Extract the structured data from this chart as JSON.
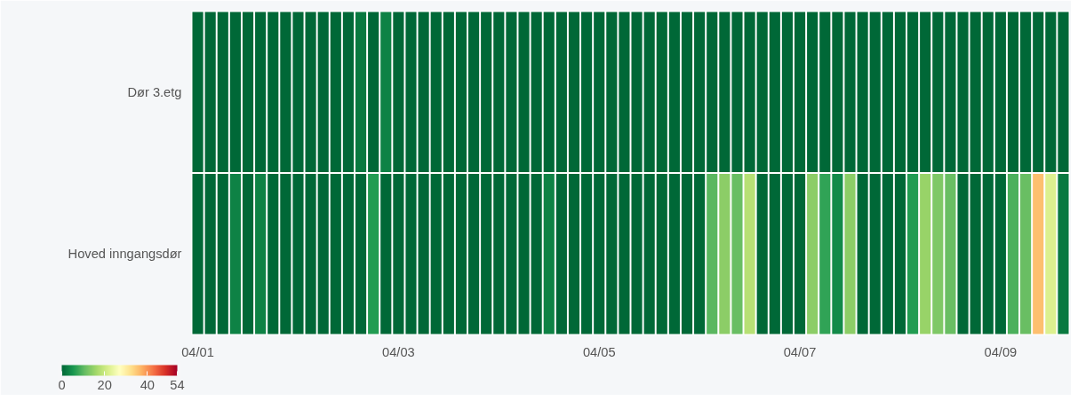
{
  "chart_data": {
    "type": "heatmap",
    "categories": [
      "04/01",
      null,
      null,
      null,
      null,
      null,
      null,
      null,
      null,
      null,
      null,
      null,
      null,
      null,
      null,
      null,
      "04/03",
      null,
      null,
      null,
      null,
      null,
      null,
      null,
      null,
      null,
      null,
      null,
      null,
      null,
      null,
      null,
      "04/05",
      null,
      null,
      null,
      null,
      null,
      null,
      null,
      null,
      null,
      null,
      null,
      null,
      null,
      null,
      null,
      "04/07",
      null,
      null,
      null,
      null,
      null,
      null,
      null,
      null,
      null,
      null,
      null,
      null,
      null,
      null,
      null,
      "04/09",
      null,
      null,
      null,
      null,
      null
    ],
    "y_categories": [
      "Dør 3.etg",
      "Hoved inngangsdør"
    ],
    "cells": [
      [
        0,
        0,
        0,
        0,
        0,
        0,
        0,
        0,
        0,
        0,
        0,
        0,
        0,
        2,
        0,
        3,
        0,
        0,
        0,
        0,
        0,
        0,
        0,
        0,
        0,
        0,
        0,
        0,
        0,
        0,
        0,
        0,
        0,
        0,
        0,
        0,
        0,
        0,
        0,
        0,
        0,
        0,
        0,
        0,
        0,
        0,
        0,
        0,
        0,
        0,
        0,
        0,
        0,
        0,
        0,
        0,
        0,
        0,
        0,
        0,
        0,
        0,
        0,
        0,
        0,
        0,
        0,
        0,
        0,
        0
      ],
      [
        0,
        0,
        0,
        3,
        0,
        3,
        0,
        0,
        0,
        0,
        0,
        0,
        0,
        0,
        6,
        0,
        0,
        0,
        0,
        0,
        0,
        0,
        0,
        0,
        0,
        0,
        0,
        0,
        3,
        0,
        0,
        0,
        0,
        0,
        0,
        0,
        0,
        0,
        0,
        0,
        0,
        10,
        14,
        11,
        18,
        0,
        0,
        0,
        0,
        14,
        7,
        4,
        14,
        0,
        0,
        0,
        0,
        6,
        15,
        13,
        11,
        0,
        0,
        0,
        0,
        9,
        11,
        36,
        22,
        2
      ]
    ],
    "clim": [
      0,
      54
    ],
    "cticks": [
      0,
      20,
      40,
      54
    ]
  }
}
